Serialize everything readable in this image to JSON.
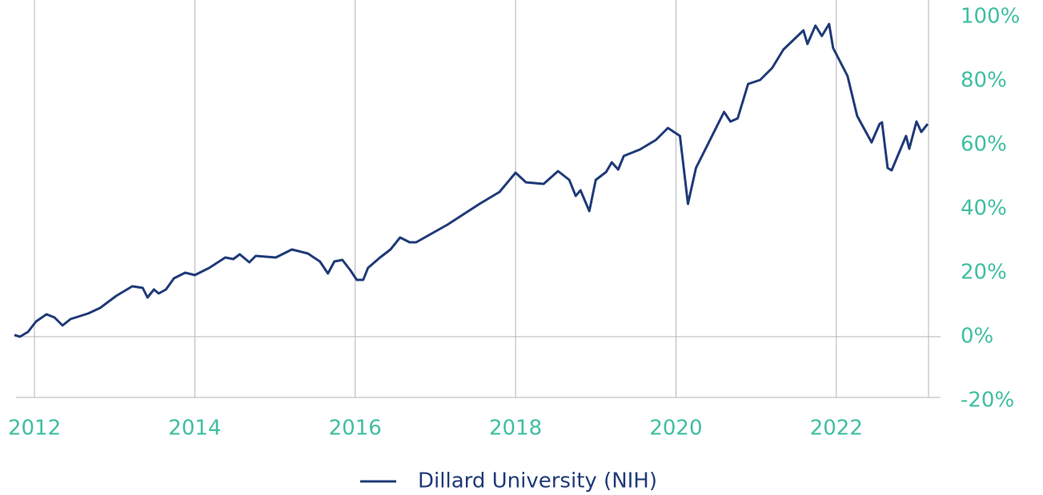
{
  "chart_data": {
    "type": "line",
    "x": [
      2011.75,
      2011.82,
      2011.92,
      2012.02,
      2012.15,
      2012.25,
      2012.35,
      2012.45,
      2012.67,
      2012.82,
      2013.02,
      2013.22,
      2013.35,
      2013.41,
      2013.49,
      2013.55,
      2013.64,
      2013.74,
      2013.88,
      2014.0,
      2014.18,
      2014.38,
      2014.48,
      2014.56,
      2014.68,
      2014.76,
      2015.01,
      2015.21,
      2015.41,
      2015.56,
      2015.66,
      2015.74,
      2015.84,
      2015.94,
      2016.02,
      2016.1,
      2016.16,
      2016.31,
      2016.44,
      2016.56,
      2016.68,
      2016.76,
      2017.15,
      2017.55,
      2017.8,
      2018.0,
      2018.13,
      2018.35,
      2018.53,
      2018.67,
      2018.75,
      2018.81,
      2018.92,
      2019.0,
      2019.13,
      2019.2,
      2019.28,
      2019.35,
      2019.55,
      2019.75,
      2019.9,
      2020.05,
      2020.15,
      2020.25,
      2020.45,
      2020.6,
      2020.68,
      2020.77,
      2020.9,
      2021.05,
      2021.2,
      2021.34,
      2021.59,
      2021.64,
      2021.74,
      2021.82,
      2021.91,
      2021.96,
      2022.14,
      2022.26,
      2022.44,
      2022.54,
      2022.57,
      2022.64,
      2022.69,
      2022.87,
      2022.91,
      2023.0,
      2023.06,
      2023.14
    ],
    "series": [
      {
        "name": "Dillard University (NIH)",
        "color": "#1f3a78",
        "values": [
          0.5,
          0,
          1.5,
          4.75,
          7,
          6,
          3.5,
          5.5,
          7.25,
          9,
          12.75,
          15.75,
          15.25,
          12.25,
          14.75,
          13.5,
          14.75,
          18.25,
          20,
          19.25,
          21.5,
          24.75,
          24.25,
          25.75,
          23.25,
          25.25,
          24.75,
          27.25,
          26,
          23.5,
          19.75,
          23.5,
          24,
          20.75,
          17.75,
          17.75,
          21.5,
          24.75,
          27.25,
          31,
          29.5,
          29.5,
          35,
          41.5,
          45.25,
          51.25,
          48.25,
          47.75,
          51.75,
          49,
          44,
          45.75,
          39.25,
          49,
          51.5,
          54.5,
          52.25,
          56.5,
          58.5,
          61.5,
          65.25,
          62.75,
          41.5,
          52.75,
          62.75,
          70.25,
          67.25,
          68.25,
          79,
          80.25,
          84,
          89.75,
          95.75,
          91.5,
          97.25,
          94,
          97.75,
          90.25,
          81.5,
          69,
          60.75,
          66.5,
          67,
          52.75,
          52,
          62.75,
          58.75,
          67.25,
          64,
          66.5
        ]
      }
    ],
    "xlim": [
      2011.75,
      2023.3
    ],
    "xticks": [
      2012,
      2014,
      2016,
      2018,
      2020,
      2022
    ],
    "ylim": [
      -20,
      100
    ],
    "yticks": [
      {
        "value": -20,
        "label": "-20%"
      },
      {
        "value": 0,
        "label": "0%"
      },
      {
        "value": 20,
        "label": "20%"
      },
      {
        "value": 40,
        "label": "40%"
      },
      {
        "value": 60,
        "label": "60%"
      },
      {
        "value": 80,
        "label": "80%"
      },
      {
        "value": 100,
        "label": "100%"
      }
    ],
    "grid": "x",
    "legend": "bottom"
  }
}
